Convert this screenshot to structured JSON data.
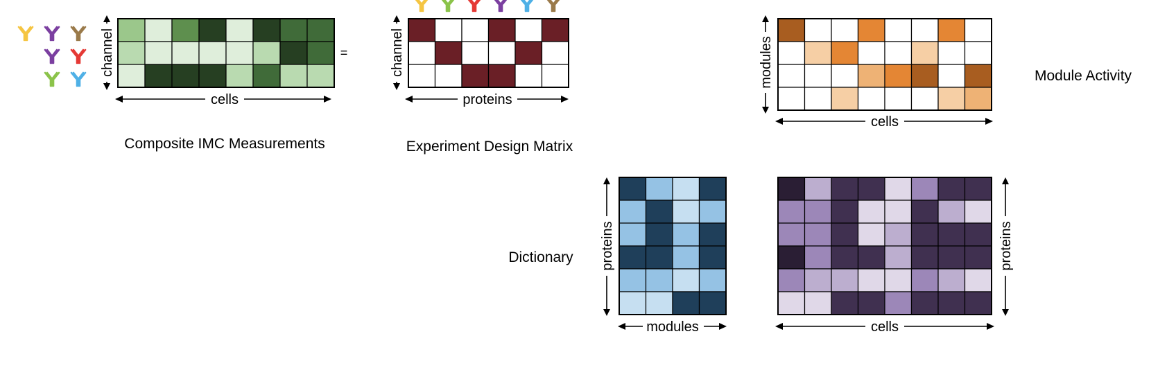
{
  "colors": {
    "antibody_palette": [
      "#f5c542",
      "#8bc34a",
      "#e53935",
      "#7b3fa0",
      "#4fb0e6",
      "#9a7a4a"
    ]
  },
  "labels": {
    "equals": "=",
    "composite_title": "Composite IMC Measurements",
    "design_title": "Experiment Design Matrix",
    "activity_title": "Module Activity",
    "dictionary_title": "Dictionary",
    "axis_channel": "channel",
    "axis_cells": "cells",
    "axis_proteins": "proteins",
    "axis_modules": "modules"
  },
  "matrices": {
    "composite": {
      "palette": [
        "#dfeedb",
        "#b9dab0",
        "#9bc78b",
        "#5e8f4e",
        "#406b39",
        "#263f22"
      ],
      "rows": [
        [
          2,
          0,
          3,
          5,
          0,
          5,
          4,
          4
        ],
        [
          1,
          0,
          0,
          0,
          0,
          1,
          5,
          4
        ],
        [
          0,
          5,
          5,
          5,
          1,
          4,
          1,
          1
        ]
      ]
    },
    "design": {
      "palette": [
        "#ffffff",
        "#6a1f26"
      ],
      "rows": [
        [
          1,
          0,
          0,
          1,
          0,
          1
        ],
        [
          0,
          1,
          0,
          0,
          1,
          0
        ],
        [
          0,
          0,
          1,
          1,
          0,
          0
        ]
      ]
    },
    "activity": {
      "palette": [
        "#ffffff",
        "#f6cfa5",
        "#eeb275",
        "#e48634",
        "#a85d20"
      ],
      "rows": [
        [
          4,
          0,
          0,
          3,
          0,
          0,
          3,
          0
        ],
        [
          0,
          1,
          3,
          0,
          0,
          1,
          0,
          0
        ],
        [
          0,
          0,
          0,
          2,
          3,
          4,
          0,
          4
        ],
        [
          0,
          0,
          1,
          0,
          0,
          0,
          1,
          2
        ]
      ]
    },
    "dictionary": {
      "palette": [
        "#c6dff1",
        "#95c2e4",
        "#1f3f5a"
      ],
      "rows": [
        [
          2,
          1,
          0,
          2
        ],
        [
          1,
          2,
          0,
          1
        ],
        [
          1,
          2,
          1,
          2
        ],
        [
          2,
          2,
          1,
          2
        ],
        [
          1,
          1,
          0,
          1
        ],
        [
          0,
          0,
          2,
          2
        ]
      ]
    },
    "reconstruction": {
      "palette": [
        "#e0d8e8",
        "#bcaecf",
        "#9c87b8",
        "#403050",
        "#2a1e34"
      ],
      "rows": [
        [
          4,
          1,
          3,
          3,
          0,
          2,
          3,
          3
        ],
        [
          2,
          2,
          3,
          0,
          0,
          3,
          1,
          0
        ],
        [
          2,
          2,
          3,
          0,
          1,
          3,
          3,
          3
        ],
        [
          4,
          2,
          3,
          3,
          1,
          3,
          3,
          3
        ],
        [
          2,
          1,
          1,
          0,
          0,
          2,
          1,
          0
        ],
        [
          0,
          0,
          3,
          3,
          2,
          3,
          3,
          3
        ]
      ]
    }
  }
}
